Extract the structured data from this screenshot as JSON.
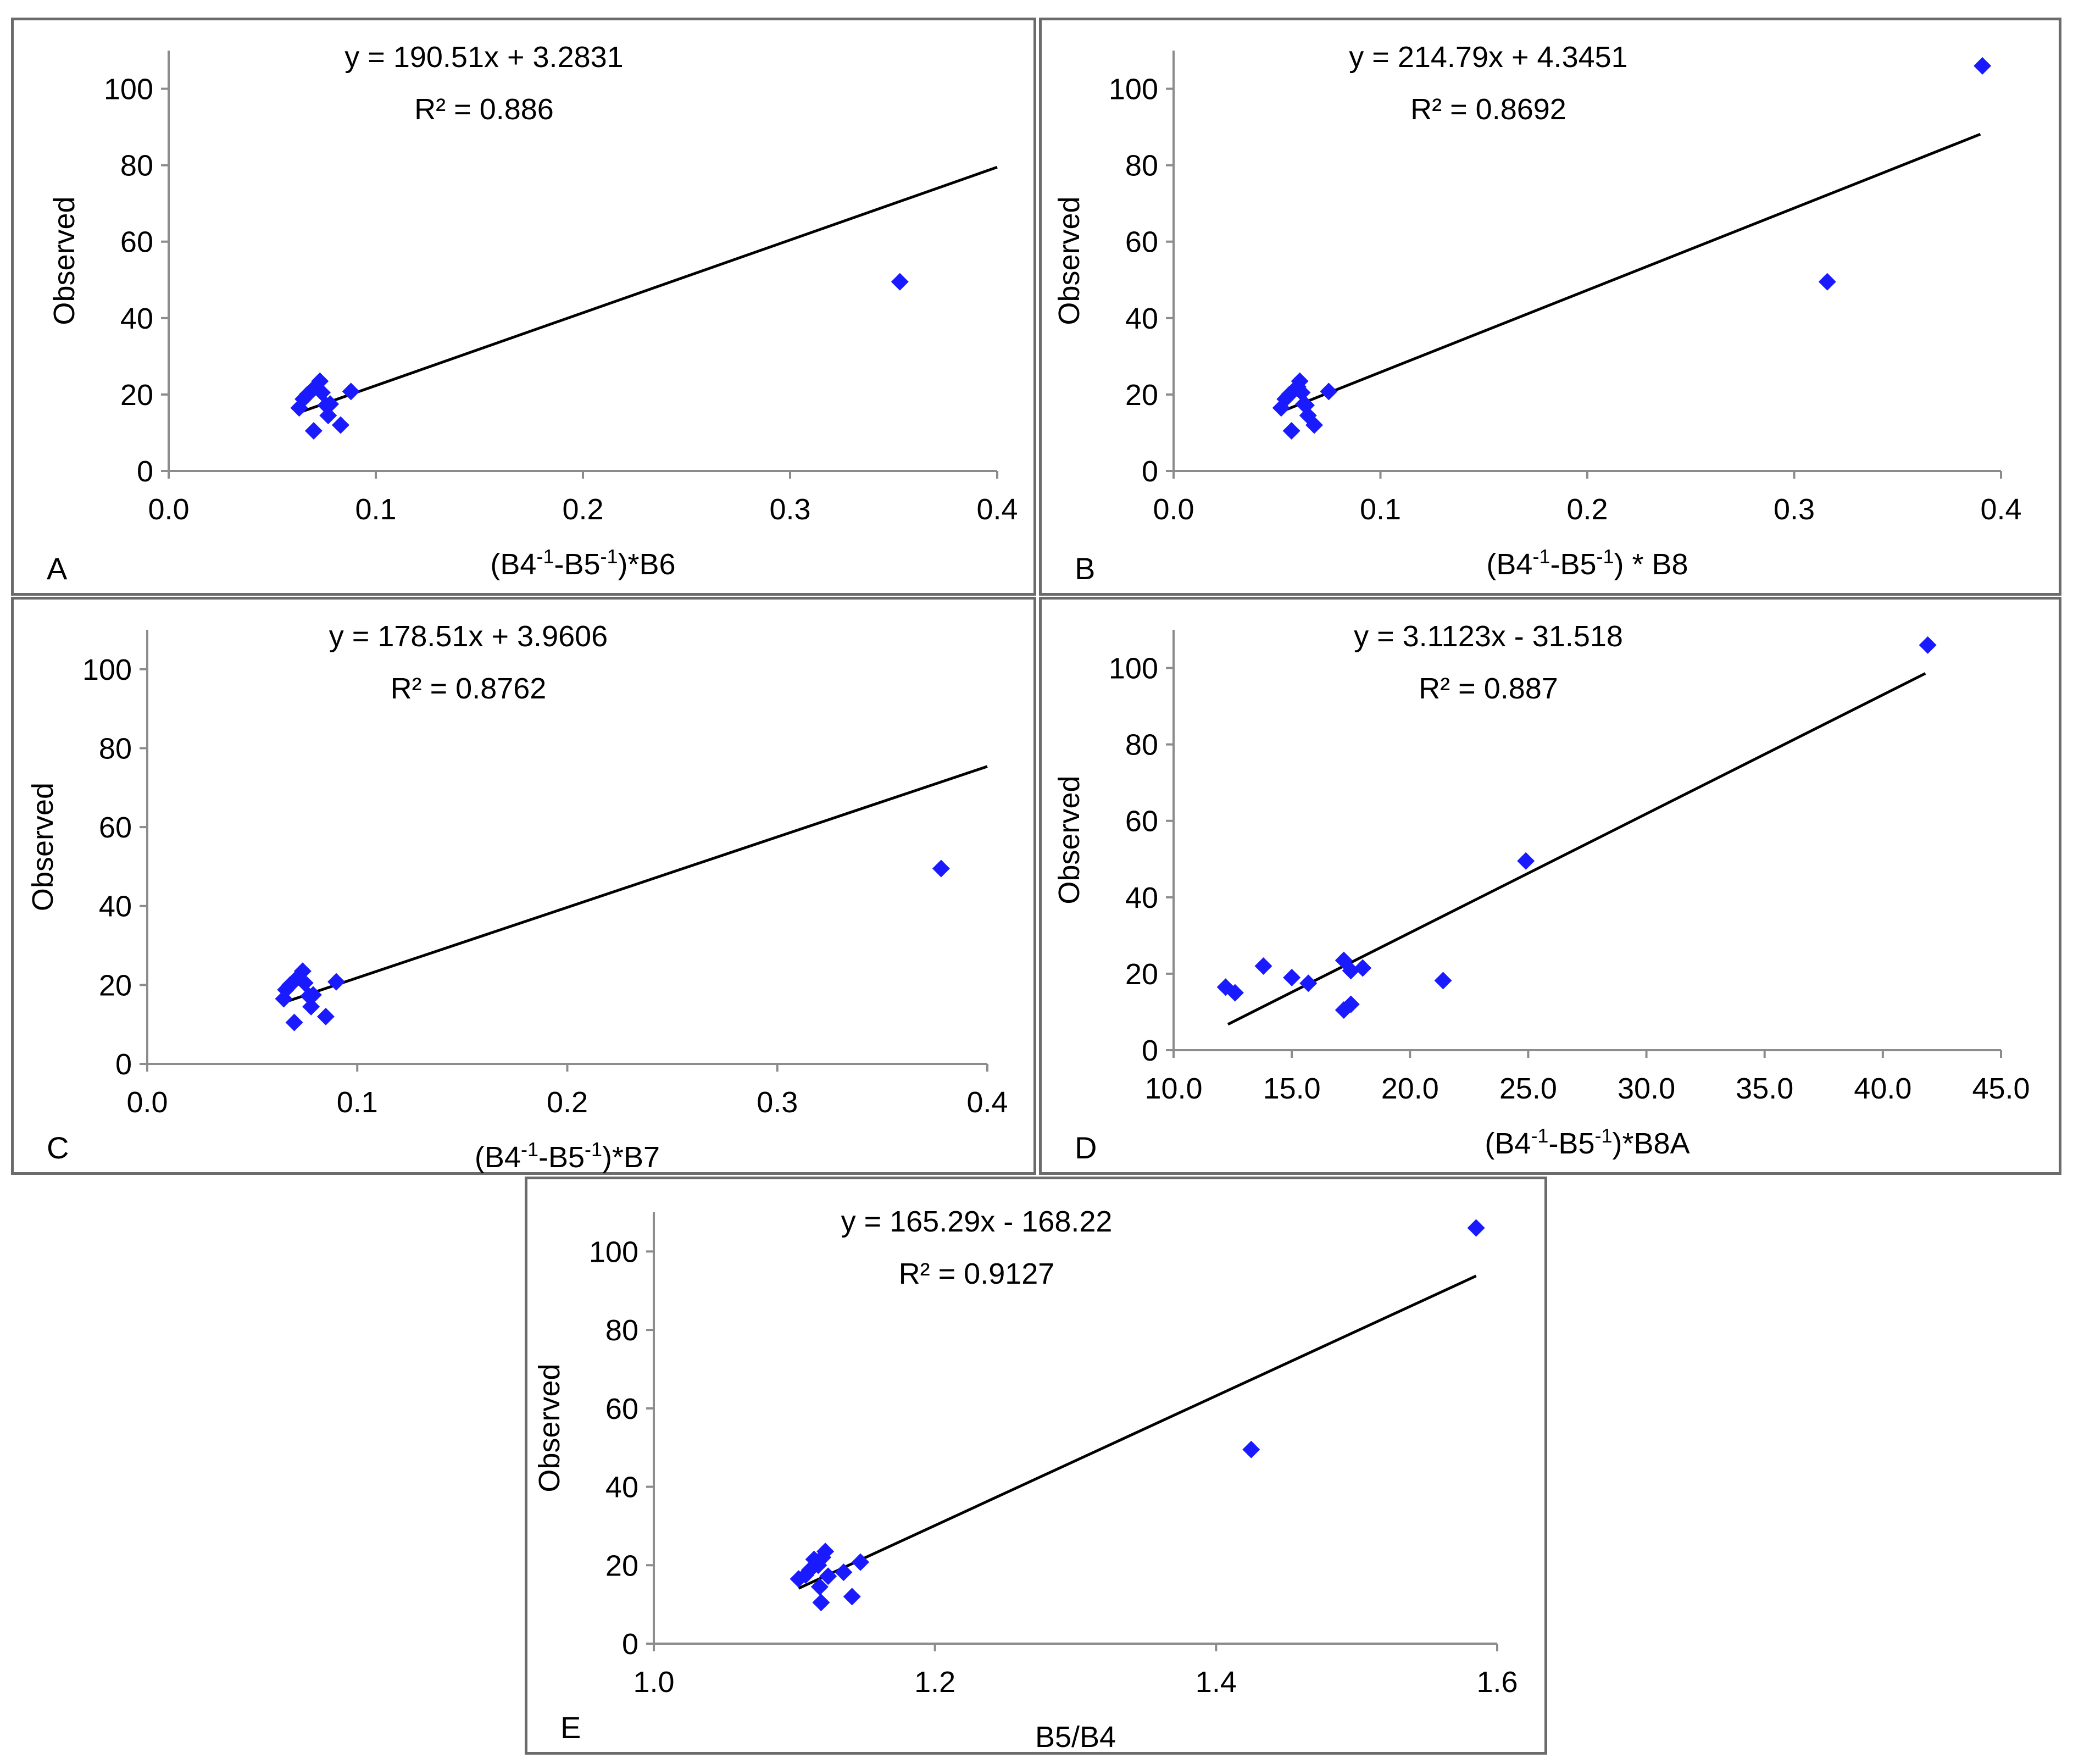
{
  "chart_data": [
    {
      "panel": "A",
      "type": "scatter",
      "equation": "y = 190.51x + 3.2831",
      "r_squared": "R² = 0.886",
      "xlabel_base": "(B4",
      "xlabel_sup1": "-1",
      "xlabel_mid": "-B5",
      "xlabel_sup2": "-1",
      "xlabel_end": ")*B6",
      "ylabel": "Observed",
      "xlim": [
        0,
        0.4
      ],
      "ylim": [
        0,
        110
      ],
      "xticks": [
        0,
        0.1,
        0.2,
        0.3,
        0.4
      ],
      "xtick_labels": [
        "0.0",
        "0.1",
        "0.2",
        "0.3",
        "0.4"
      ],
      "yticks": [
        0,
        20,
        40,
        60,
        80,
        100
      ],
      "ytick_labels": [
        "0",
        "20",
        "40",
        "60",
        "80",
        "100"
      ],
      "trendline": {
        "slope": 190.51,
        "intercept": 3.2831,
        "x_start": 0.063,
        "x_end": 0.4
      },
      "x": [
        0.063,
        0.065,
        0.067,
        0.069,
        0.071,
        0.073,
        0.074,
        0.076,
        0.077,
        0.078,
        0.07,
        0.083,
        0.088,
        0.353
      ],
      "y": [
        16.5,
        18.8,
        20.0,
        21.0,
        22.0,
        23.5,
        20.5,
        17.2,
        14.5,
        17.5,
        10.5,
        12.0,
        20.8,
        49.5
      ]
    },
    {
      "panel": "B",
      "type": "scatter",
      "equation": "y = 214.79x + 4.3451",
      "r_squared": "R² = 0.8692",
      "xlabel_base": "(B4",
      "xlabel_sup1": "-1",
      "xlabel_mid": "-B5",
      "xlabel_sup2": "-1",
      "xlabel_end": ") * B8",
      "ylabel": "Observed",
      "xlim": [
        0,
        0.4
      ],
      "ylim": [
        0,
        110
      ],
      "xticks": [
        0,
        0.1,
        0.2,
        0.3,
        0.4
      ],
      "xtick_labels": [
        "0.0",
        "0.1",
        "0.2",
        "0.3",
        "0.4"
      ],
      "yticks": [
        0,
        20,
        40,
        60,
        80,
        100
      ],
      "ytick_labels": [
        "0",
        "20",
        "40",
        "60",
        "80",
        "100"
      ],
      "trendline": {
        "slope": 214.79,
        "intercept": 4.3451,
        "x_start": 0.053,
        "x_end": 0.39
      },
      "x": [
        0.052,
        0.054,
        0.056,
        0.058,
        0.06,
        0.061,
        0.062,
        0.064,
        0.065,
        0.063,
        0.057,
        0.068,
        0.075,
        0.316,
        0.391
      ],
      "y": [
        16.5,
        18.8,
        20.0,
        21.0,
        22.0,
        23.5,
        20.5,
        17.2,
        14.5,
        17.5,
        10.5,
        12.0,
        20.8,
        49.5,
        106
      ]
    },
    {
      "panel": "C",
      "type": "scatter",
      "equation": "y = 178.51x + 3.9606",
      "r_squared": "R² = 0.8762",
      "xlabel_base": "(B4",
      "xlabel_sup1": "-1",
      "xlabel_mid": "-B5",
      "xlabel_sup2": "-1",
      "xlabel_end": ")*B7",
      "ylabel": "Observed",
      "xlim": [
        0,
        0.4
      ],
      "ylim": [
        0,
        110
      ],
      "xticks": [
        0,
        0.1,
        0.2,
        0.3,
        0.4
      ],
      "xtick_labels": [
        "0.0",
        "0.1",
        "0.2",
        "0.3",
        "0.4"
      ],
      "yticks": [
        0,
        20,
        40,
        60,
        80,
        100
      ],
      "ytick_labels": [
        "0",
        "20",
        "40",
        "60",
        "80",
        "100"
      ],
      "trendline": {
        "slope": 178.51,
        "intercept": 3.9606,
        "x_start": 0.065,
        "x_end": 0.4
      },
      "x": [
        0.065,
        0.066,
        0.068,
        0.07,
        0.072,
        0.074,
        0.075,
        0.077,
        0.078,
        0.079,
        0.07,
        0.085,
        0.09,
        0.378
      ],
      "y": [
        16.5,
        18.8,
        20.0,
        21.0,
        22.0,
        23.5,
        20.5,
        17.2,
        14.5,
        17.5,
        10.5,
        12.0,
        20.8,
        49.5
      ]
    },
    {
      "panel": "D",
      "type": "scatter",
      "equation": "y = 3.1123x - 31.518",
      "r_squared": "R² = 0.887",
      "xlabel_base": "(B4",
      "xlabel_sup1": "-1",
      "xlabel_mid": "-B5",
      "xlabel_sup2": "-1",
      "xlabel_end": ")*B8A",
      "ylabel": "Observed",
      "xlim": [
        10,
        45
      ],
      "ylim": [
        0,
        110
      ],
      "xticks": [
        10,
        15,
        20,
        25,
        30,
        35,
        40,
        45
      ],
      "xtick_labels": [
        "10.0",
        "15.0",
        "20.0",
        "25.0",
        "30.0",
        "35.0",
        "40.0",
        "45.0"
      ],
      "yticks": [
        0,
        20,
        40,
        60,
        80,
        100
      ],
      "ytick_labels": [
        "0",
        "20",
        "40",
        "60",
        "80",
        "100"
      ],
      "trendline": {
        "slope": 3.1123,
        "intercept": -31.518,
        "x_start": 12.3,
        "x_end": 41.8
      },
      "x": [
        12.2,
        12.6,
        13.8,
        15.0,
        15.7,
        17.2,
        17.5,
        18.0,
        17.2,
        17.5,
        21.4,
        24.9,
        41.9
      ],
      "y": [
        16.5,
        15.0,
        22.0,
        19.0,
        17.5,
        23.5,
        20.8,
        21.5,
        10.5,
        12.0,
        18.2,
        49.5,
        106
      ]
    },
    {
      "panel": "E",
      "type": "scatter",
      "equation": "y = 165.29x - 168.22",
      "r_squared": "R² = 0.9127",
      "xlabel_base": "B5/B4",
      "xlabel_sup1": "",
      "xlabel_mid": "",
      "xlabel_sup2": "",
      "xlabel_end": "",
      "ylabel": "Observed",
      "xlim": [
        1.0,
        1.6
      ],
      "ylim": [
        0,
        110
      ],
      "xticks": [
        1.0,
        1.2,
        1.4,
        1.6
      ],
      "xtick_labels": [
        "1.0",
        "1.2",
        "1.4",
        "1.6"
      ],
      "yticks": [
        0,
        20,
        40,
        60,
        80,
        100
      ],
      "ytick_labels": [
        "0",
        "20",
        "40",
        "60",
        "80",
        "100"
      ],
      "trendline": {
        "slope": 165.29,
        "intercept": -168.22,
        "x_start": 1.103,
        "x_end": 1.585
      },
      "x": [
        1.103,
        1.108,
        1.111,
        1.114,
        1.117,
        1.12,
        1.122,
        1.124,
        1.118,
        1.119,
        1.135,
        1.141,
        1.147,
        1.425,
        1.585
      ],
      "y": [
        16.5,
        17.5,
        18.8,
        21.5,
        20.0,
        22.0,
        23.5,
        17.2,
        14.5,
        10.5,
        18.2,
        12.0,
        20.8,
        49.5,
        106
      ]
    }
  ]
}
